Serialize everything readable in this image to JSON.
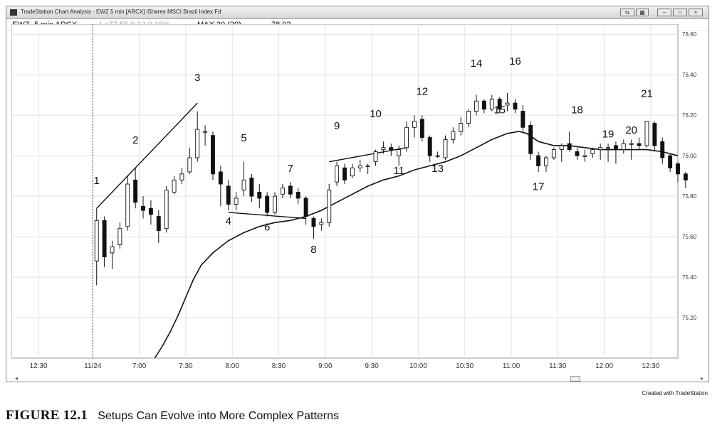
{
  "window": {
    "title": "TradeStation Chart Analysis - EWZ 5 min [ARCX] iShares MSCI Brazil Index Fd",
    "controls": [
      "⇆",
      "▦",
      "–",
      "□",
      "×"
    ]
  },
  "infobar": {
    "symbol": "EWZ- 5 min ARCX",
    "last": "L=77.55 0.12 0.15%",
    "indicator_label": "MAX 20 (20)",
    "indicator_value": "78.02"
  },
  "credit": "Created with TradeStation",
  "caption": {
    "label": "FIGURE 12.1",
    "text": "Setups Can Evolve into More Complex Patterns"
  },
  "scrollbar": {
    "left": "◂",
    "right": "▸"
  },
  "chart_data": {
    "type": "candlestick",
    "title": "",
    "xlabel": "",
    "ylabel": "",
    "ylim": [
      75.0,
      76.65
    ],
    "xlim": [
      -11,
      75
    ],
    "x_ticks": [
      {
        "x": -7.5,
        "label": "12:30"
      },
      {
        "x": -0.5,
        "label": "11/24"
      },
      {
        "x": 5.5,
        "label": "7:00"
      },
      {
        "x": 11.5,
        "label": "7:30"
      },
      {
        "x": 17.5,
        "label": "8:00"
      },
      {
        "x": 23.5,
        "label": "8:30"
      },
      {
        "x": 29.5,
        "label": "9:00"
      },
      {
        "x": 35.5,
        "label": "9:30"
      },
      {
        "x": 41.5,
        "label": "10:00"
      },
      {
        "x": 47.5,
        "label": "10:30"
      },
      {
        "x": 53.5,
        "label": "11:00"
      },
      {
        "x": 59.5,
        "label": "11:30"
      },
      {
        "x": 65.5,
        "label": "12:00"
      },
      {
        "x": 71.5,
        "label": "12:30"
      }
    ],
    "y_ticks": [
      {
        "v": 76.6,
        "label": "76.60"
      },
      {
        "v": 76.4,
        "label": "76.40"
      },
      {
        "v": 76.2,
        "label": "76.20"
      },
      {
        "v": 76.0,
        "label": "76.00"
      },
      {
        "v": 75.8,
        "label": "75.80"
      },
      {
        "v": 75.6,
        "label": "75.60"
      },
      {
        "v": 75.4,
        "label": "75.40"
      },
      {
        "v": 75.2,
        "label": "75.20"
      }
    ],
    "candles": [
      {
        "o": 75.48,
        "h": 75.74,
        "l": 75.36,
        "c": 75.68
      },
      {
        "o": 75.68,
        "h": 75.7,
        "l": 75.45,
        "c": 75.5
      },
      {
        "o": 75.52,
        "h": 75.58,
        "l": 75.44,
        "c": 75.55
      },
      {
        "o": 75.56,
        "h": 75.67,
        "l": 75.54,
        "c": 75.64
      },
      {
        "o": 75.65,
        "h": 75.9,
        "l": 75.63,
        "c": 75.86
      },
      {
        "o": 75.88,
        "h": 75.94,
        "l": 75.74,
        "c": 75.77
      },
      {
        "o": 75.75,
        "h": 75.8,
        "l": 75.69,
        "c": 75.73
      },
      {
        "o": 75.74,
        "h": 75.78,
        "l": 75.66,
        "c": 75.71
      },
      {
        "o": 75.7,
        "h": 75.73,
        "l": 75.57,
        "c": 75.63
      },
      {
        "o": 75.64,
        "h": 75.85,
        "l": 75.62,
        "c": 75.83
      },
      {
        "o": 75.82,
        "h": 75.9,
        "l": 75.81,
        "c": 75.88
      },
      {
        "o": 75.88,
        "h": 75.94,
        "l": 75.86,
        "c": 75.91
      },
      {
        "o": 75.92,
        "h": 76.04,
        "l": 75.91,
        "c": 75.99
      },
      {
        "o": 75.99,
        "h": 76.22,
        "l": 75.97,
        "c": 76.13
      },
      {
        "o": 76.12,
        "h": 76.15,
        "l": 76.05,
        "c": 76.12
      },
      {
        "o": 76.1,
        "h": 76.12,
        "l": 75.88,
        "c": 75.91
      },
      {
        "o": 75.92,
        "h": 75.95,
        "l": 75.75,
        "c": 75.86
      },
      {
        "o": 75.85,
        "h": 75.88,
        "l": 75.73,
        "c": 75.76
      },
      {
        "o": 75.76,
        "h": 75.82,
        "l": 75.73,
        "c": 75.79
      },
      {
        "o": 75.83,
        "h": 75.97,
        "l": 75.8,
        "c": 75.88
      },
      {
        "o": 75.89,
        "h": 75.91,
        "l": 75.77,
        "c": 75.8
      },
      {
        "o": 75.82,
        "h": 75.86,
        "l": 75.74,
        "c": 75.79
      },
      {
        "o": 75.8,
        "h": 75.82,
        "l": 75.7,
        "c": 75.72
      },
      {
        "o": 75.72,
        "h": 75.82,
        "l": 75.71,
        "c": 75.8
      },
      {
        "o": 75.81,
        "h": 75.86,
        "l": 75.79,
        "c": 75.84
      },
      {
        "o": 75.85,
        "h": 75.87,
        "l": 75.79,
        "c": 75.81
      },
      {
        "o": 75.82,
        "h": 75.84,
        "l": 75.76,
        "c": 75.79
      },
      {
        "o": 75.79,
        "h": 75.8,
        "l": 75.66,
        "c": 75.7
      },
      {
        "o": 75.69,
        "h": 75.7,
        "l": 75.59,
        "c": 75.65
      },
      {
        "o": 75.66,
        "h": 75.69,
        "l": 75.63,
        "c": 75.67
      },
      {
        "o": 75.67,
        "h": 75.86,
        "l": 75.65,
        "c": 75.83
      },
      {
        "o": 75.87,
        "h": 75.97,
        "l": 75.85,
        "c": 75.95
      },
      {
        "o": 75.94,
        "h": 75.96,
        "l": 75.86,
        "c": 75.88
      },
      {
        "o": 75.9,
        "h": 75.96,
        "l": 75.89,
        "c": 75.94
      },
      {
        "o": 75.94,
        "h": 75.98,
        "l": 75.92,
        "c": 75.95
      },
      {
        "o": 75.95,
        "h": 75.96,
        "l": 75.91,
        "c": 75.95
      },
      {
        "o": 75.97,
        "h": 76.03,
        "l": 75.95,
        "c": 76.02
      },
      {
        "o": 76.03,
        "h": 76.07,
        "l": 76.01,
        "c": 76.04
      },
      {
        "o": 76.04,
        "h": 76.06,
        "l": 76.0,
        "c": 76.03
      },
      {
        "o": 76.0,
        "h": 76.05,
        "l": 75.95,
        "c": 76.03
      },
      {
        "o": 76.04,
        "h": 76.17,
        "l": 76.02,
        "c": 76.14
      },
      {
        "o": 76.14,
        "h": 76.2,
        "l": 76.09,
        "c": 76.17
      },
      {
        "o": 76.18,
        "h": 76.2,
        "l": 76.07,
        "c": 76.09
      },
      {
        "o": 76.09,
        "h": 76.1,
        "l": 75.97,
        "c": 76.0
      },
      {
        "o": 76.0,
        "h": 76.02,
        "l": 75.99,
        "c": 76.0
      },
      {
        "o": 75.99,
        "h": 76.1,
        "l": 75.98,
        "c": 76.08
      },
      {
        "o": 76.08,
        "h": 76.14,
        "l": 76.06,
        "c": 76.12
      },
      {
        "o": 76.12,
        "h": 76.19,
        "l": 76.1,
        "c": 76.16
      },
      {
        "o": 76.16,
        "h": 76.23,
        "l": 76.14,
        "c": 76.22
      },
      {
        "o": 76.22,
        "h": 76.3,
        "l": 76.2,
        "c": 76.27
      },
      {
        "o": 76.27,
        "h": 76.28,
        "l": 76.21,
        "c": 76.23
      },
      {
        "o": 76.23,
        "h": 76.3,
        "l": 76.22,
        "c": 76.28
      },
      {
        "o": 76.28,
        "h": 76.29,
        "l": 76.21,
        "c": 76.23
      },
      {
        "o": 76.25,
        "h": 76.31,
        "l": 76.22,
        "c": 76.26
      },
      {
        "o": 76.26,
        "h": 76.28,
        "l": 76.21,
        "c": 76.23
      },
      {
        "o": 76.22,
        "h": 76.25,
        "l": 76.12,
        "c": 76.14
      },
      {
        "o": 76.15,
        "h": 76.17,
        "l": 75.98,
        "c": 76.01
      },
      {
        "o": 76.0,
        "h": 76.02,
        "l": 75.92,
        "c": 75.95
      },
      {
        "o": 75.95,
        "h": 76.0,
        "l": 75.92,
        "c": 75.99
      },
      {
        "o": 75.99,
        "h": 76.04,
        "l": 75.98,
        "c": 76.03
      },
      {
        "o": 76.03,
        "h": 76.06,
        "l": 75.97,
        "c": 76.05
      },
      {
        "o": 76.06,
        "h": 76.12,
        "l": 76.02,
        "c": 76.03
      },
      {
        "o": 76.02,
        "h": 76.04,
        "l": 75.98,
        "c": 76.0
      },
      {
        "o": 76.0,
        "h": 76.03,
        "l": 75.97,
        "c": 76.0
      },
      {
        "o": 76.01,
        "h": 76.04,
        "l": 75.99,
        "c": 76.03
      },
      {
        "o": 76.03,
        "h": 76.06,
        "l": 75.98,
        "c": 76.04
      },
      {
        "o": 76.04,
        "h": 76.06,
        "l": 75.97,
        "c": 76.04
      },
      {
        "o": 76.05,
        "h": 76.07,
        "l": 75.96,
        "c": 76.03
      },
      {
        "o": 76.03,
        "h": 76.08,
        "l": 76.01,
        "c": 76.06
      },
      {
        "o": 76.06,
        "h": 76.08,
        "l": 75.98,
        "c": 76.06
      },
      {
        "o": 76.06,
        "h": 76.09,
        "l": 76.03,
        "c": 76.05
      },
      {
        "o": 76.05,
        "h": 76.17,
        "l": 76.04,
        "c": 76.17
      },
      {
        "o": 76.16,
        "h": 76.17,
        "l": 76.02,
        "c": 76.05
      },
      {
        "o": 76.07,
        "h": 76.09,
        "l": 75.96,
        "c": 75.99
      },
      {
        "o": 76.0,
        "h": 76.01,
        "l": 75.92,
        "c": 75.94
      },
      {
        "o": 75.96,
        "h": 75.97,
        "l": 75.87,
        "c": 75.91
      },
      {
        "o": 75.91,
        "h": 75.92,
        "l": 75.84,
        "c": 75.88
      }
    ],
    "ema": {
      "name": "",
      "points": [
        [
          7.5,
          75.0
        ],
        [
          8.5,
          75.06
        ],
        [
          9.5,
          75.13
        ],
        [
          10.5,
          75.21
        ],
        [
          11.5,
          75.3
        ],
        [
          12.5,
          75.39
        ],
        [
          13.5,
          75.46
        ],
        [
          15,
          75.52
        ],
        [
          17,
          75.58
        ],
        [
          19,
          75.62
        ],
        [
          21,
          75.65
        ],
        [
          23,
          75.67
        ],
        [
          25,
          75.68
        ],
        [
          27,
          75.7
        ],
        [
          29,
          75.73
        ],
        [
          31,
          75.77
        ],
        [
          33,
          75.81
        ],
        [
          35,
          75.85
        ],
        [
          37,
          75.88
        ],
        [
          39,
          75.9
        ],
        [
          41,
          75.93
        ],
        [
          43,
          75.95
        ],
        [
          45,
          75.97
        ],
        [
          47,
          76.0
        ],
        [
          49,
          76.04
        ],
        [
          51,
          76.08
        ],
        [
          53,
          76.11
        ],
        [
          54.5,
          76.12
        ],
        [
          55.5,
          76.11
        ],
        [
          57,
          76.07
        ],
        [
          59,
          76.05
        ],
        [
          61,
          76.05
        ],
        [
          63,
          76.04
        ],
        [
          65,
          76.03
        ],
        [
          67,
          76.03
        ],
        [
          69,
          76.03
        ],
        [
          71,
          76.03
        ],
        [
          73,
          76.02
        ],
        [
          75,
          76.0
        ]
      ]
    },
    "trendlines": [
      {
        "x1": 0,
        "y1": 75.74,
        "x2": 13,
        "y2": 76.26
      },
      {
        "x1": 17,
        "y1": 75.72,
        "x2": 27,
        "y2": 75.69
      },
      {
        "x1": 30,
        "y1": 75.97,
        "x2": 40,
        "y2": 76.04
      }
    ],
    "annotations": [
      {
        "label": "1",
        "x": 0,
        "y": 75.86
      },
      {
        "label": "2",
        "x": 5,
        "y": 76.06
      },
      {
        "label": "3",
        "x": 13,
        "y": 76.37
      },
      {
        "label": "4",
        "x": 17,
        "y": 75.66
      },
      {
        "label": "5",
        "x": 19,
        "y": 76.07
      },
      {
        "label": "6",
        "x": 22,
        "y": 75.63
      },
      {
        "label": "7",
        "x": 25,
        "y": 75.92
      },
      {
        "label": "8",
        "x": 28,
        "y": 75.52
      },
      {
        "label": "9",
        "x": 31,
        "y": 76.13
      },
      {
        "label": "10",
        "x": 36,
        "y": 76.19
      },
      {
        "label": "11",
        "x": 39,
        "y": 75.91
      },
      {
        "label": "12",
        "x": 42,
        "y": 76.3
      },
      {
        "label": "13",
        "x": 44,
        "y": 75.92
      },
      {
        "label": "14",
        "x": 49,
        "y": 76.44
      },
      {
        "label": "15",
        "x": 52,
        "y": 76.21
      },
      {
        "label": "16",
        "x": 54,
        "y": 76.45
      },
      {
        "label": "17",
        "x": 57,
        "y": 75.83
      },
      {
        "label": "18",
        "x": 62,
        "y": 76.21
      },
      {
        "label": "19",
        "x": 66,
        "y": 76.09
      },
      {
        "label": "20",
        "x": 69,
        "y": 76.11
      },
      {
        "label": "21",
        "x": 71,
        "y": 76.29
      }
    ],
    "session_start_x": -0.5,
    "grid": true
  }
}
